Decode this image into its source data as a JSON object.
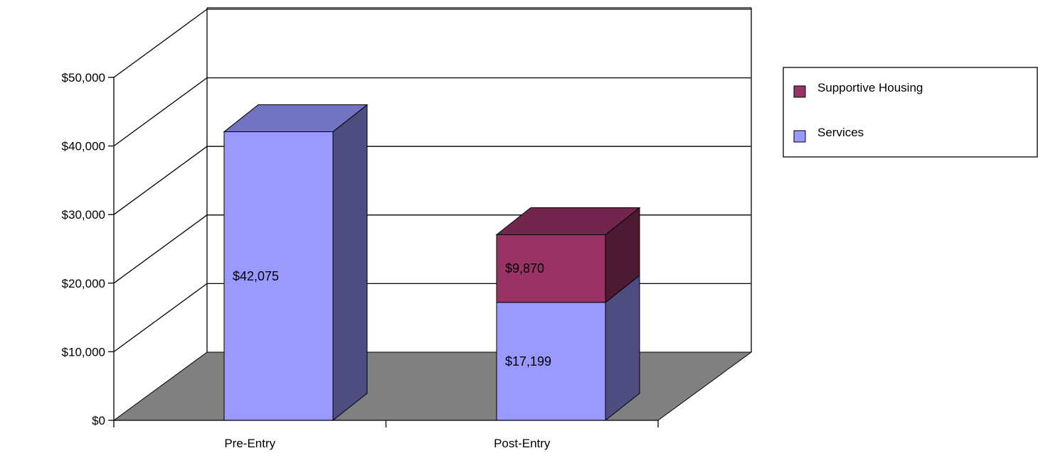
{
  "chart_data": {
    "type": "bar",
    "stacked": true,
    "three_d": true,
    "categories": [
      "Pre-Entry",
      "Post-Entry"
    ],
    "series": [
      {
        "name": "Services",
        "values": [
          42075,
          17199
        ],
        "labels": [
          "$42,075",
          "$17,199"
        ]
      },
      {
        "name": "Supportive Housing",
        "values": [
          0,
          9870
        ],
        "labels": [
          "",
          "$9,870"
        ]
      }
    ],
    "ylim": [
      0,
      50000
    ],
    "yticks": [
      0,
      10000,
      20000,
      30000,
      40000,
      50000
    ],
    "ytick_labels": [
      "$0",
      "$10,000",
      "$20,000",
      "$30,000",
      "$40,000",
      "$50,000"
    ],
    "grid": true,
    "legend_position": "right",
    "legend": [
      "Supportive Housing",
      "Services"
    ],
    "colors": {
      "Services": {
        "front": "#9999ff",
        "top": "#7373c4",
        "side": "#4d4d80"
      },
      "Supportive Housing": {
        "front": "#993366",
        "top": "#73264d",
        "side": "#4d1a33"
      },
      "floor": "#808080",
      "grid": "#000000"
    }
  }
}
